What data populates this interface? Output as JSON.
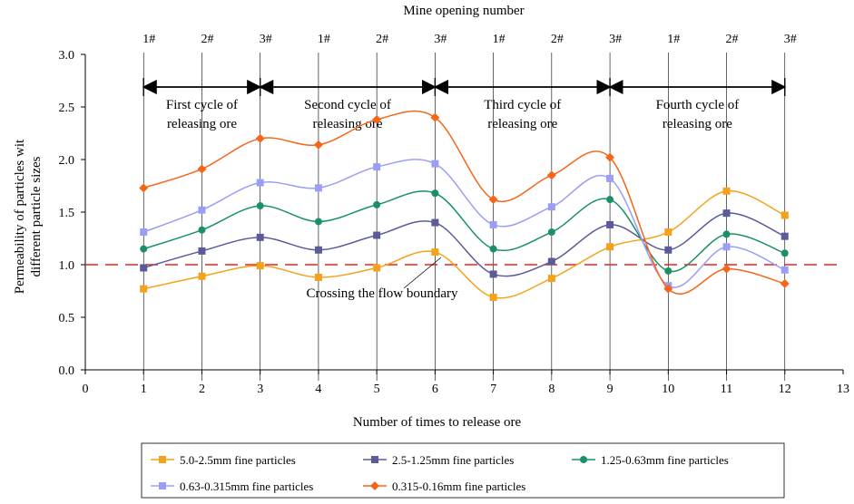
{
  "chart_data": {
    "type": "line",
    "title": "",
    "xlabel": "Number of times to release ore",
    "ylabel": [
      "Permeability of particles wit",
      "different particle sizes"
    ],
    "xlim": [
      0,
      13
    ],
    "ylim": [
      0,
      3.0
    ],
    "x_ticks": [
      "0",
      "1",
      "2",
      "3",
      "4",
      "5",
      "6",
      "7",
      "8",
      "9",
      "10",
      "11",
      "12",
      "13"
    ],
    "y_ticks": [
      "0.0",
      "0.5",
      "1.0",
      "1.5",
      "2.0",
      "2.5",
      "3.0"
    ],
    "top_axis": {
      "title": "Mine opening number",
      "labels": [
        "1#",
        "2#",
        "3#",
        "1#",
        "2#",
        "3#",
        "1#",
        "2#",
        "3#",
        "1#",
        "2#",
        "3#"
      ]
    },
    "cycles": [
      {
        "lines": [
          "First cycle of",
          "releasing ore"
        ]
      },
      {
        "lines": [
          "Second cycle of",
          "releasing ore"
        ]
      },
      {
        "lines": [
          "Third cycle of",
          "releasing ore"
        ]
      },
      {
        "lines": [
          "Fourth cycle of",
          "releasing ore"
        ]
      }
    ],
    "boundary": {
      "value": 1.0,
      "label": "Crossing the flow boundary",
      "color": "#e8231f"
    },
    "x": [
      1,
      2,
      3,
      4,
      5,
      6,
      7,
      8,
      9,
      10,
      11,
      12
    ],
    "series": [
      {
        "name": "5.0-2.5mm fine particles",
        "color": "#f5a21b",
        "marker": "square",
        "values": [
          0.77,
          0.89,
          0.99,
          0.88,
          0.97,
          1.12,
          0.69,
          0.87,
          1.17,
          1.31,
          1.7,
          1.47
        ]
      },
      {
        "name": "2.5-1.25mm fine particles",
        "color": "#5b5b9c",
        "marker": "square",
        "values": [
          0.97,
          1.13,
          1.26,
          1.14,
          1.28,
          1.4,
          0.91,
          1.03,
          1.38,
          1.14,
          1.49,
          1.27
        ]
      },
      {
        "name": "1.25-0.63mm fine particles",
        "color": "#1a9165",
        "marker": "circle",
        "values": [
          1.15,
          1.33,
          1.56,
          1.41,
          1.57,
          1.68,
          1.15,
          1.31,
          1.62,
          0.94,
          1.29,
          1.11
        ]
      },
      {
        "name": "0.63-0.315mm fine particles",
        "color": "#9b9ef5",
        "marker": "square",
        "values": [
          1.31,
          1.52,
          1.78,
          1.73,
          1.93,
          1.96,
          1.38,
          1.55,
          1.82,
          0.8,
          1.17,
          0.95
        ]
      },
      {
        "name": "0.315-0.16mm fine particles",
        "color": "#f5661a",
        "marker": "diamond",
        "values": [
          1.73,
          1.91,
          2.2,
          2.14,
          2.38,
          2.4,
          1.62,
          1.85,
          2.02,
          0.77,
          0.96,
          0.82
        ]
      }
    ]
  }
}
